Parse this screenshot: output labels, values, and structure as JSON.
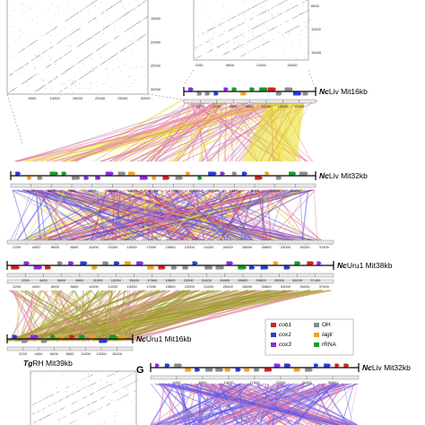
{
  "dotplot_left": {
    "y_ticks": [
      "15000",
      "20000",
      "25000",
      "30000"
    ],
    "x_ticks": [
      "5000",
      "10000",
      "15000",
      "20000",
      "25000",
      "30000"
    ]
  },
  "dotplot_right": {
    "y_ticks": [
      "6600",
      "11000",
      "15400"
    ],
    "x_ticks": [
      "2200",
      "6600",
      "11000",
      "15400"
    ]
  },
  "tracks": [
    {
      "id": "mit16",
      "label_prefix": "Nc",
      "label_rest": "Liv Mit16kb",
      "ticks": [
        "2200",
        "4400",
        "6600",
        "8800",
        "11000",
        "13200",
        "15400"
      ]
    },
    {
      "id": "mit32",
      "label_prefix": "Nc",
      "label_rest": "Liv Mit32kb",
      "ticks": [
        "2200",
        "4400",
        "6600",
        "8800",
        "11000",
        "13200",
        "15400",
        "17600",
        "19800",
        "22000",
        "24200",
        "26400",
        "28600",
        "30800"
      ]
    },
    {
      "id": "mit38",
      "label_prefix": "Nc",
      "label_rest": "Uru1 Mit38kb",
      "ticks": [
        "2200",
        "4400",
        "6600",
        "8800",
        "11000",
        "13200",
        "15400",
        "17600",
        "19800",
        "22000",
        "24200",
        "26400",
        "28600",
        "30800",
        "33000",
        "35200",
        "37400"
      ]
    },
    {
      "id": "uru16",
      "label_prefix": "Nc",
      "label_rest": "Uru1 Mit16kb",
      "ticks": [
        "2200",
        "4400",
        "6600",
        "8800",
        "11000",
        "13200",
        "15400"
      ]
    },
    {
      "id": "g32",
      "label_prefix": "Nc",
      "label_rest": "Liv Mit32kb",
      "ticks": [
        "4400",
        "8800",
        "13200",
        "17600",
        "22000",
        "26400",
        "30800"
      ]
    }
  ],
  "mid_axis_ticks": [
    "2200",
    "4400",
    "6600",
    "8800",
    "11000",
    "13200",
    "15400",
    "17600",
    "19800",
    "22000",
    "24200",
    "26400",
    "28600",
    "30800",
    "33000",
    "35200",
    "37400"
  ],
  "mid_axis_ticks_lower": [
    "2200",
    "4400",
    "6600",
    "8800",
    "11000",
    "13200",
    "15400",
    "17600",
    "19800",
    "22000",
    "24200",
    "26400",
    "28600",
    "30800",
    "33000",
    "35200",
    "37400"
  ],
  "tg_label": {
    "prefix": "Tg",
    "rest": "RH Mit39kb"
  },
  "panel_letter": "G",
  "legend": [
    {
      "label": "cob1",
      "color": "#d62020",
      "italic": true
    },
    {
      "label": "OH",
      "color": "#8a8a8a",
      "italic": false
    },
    {
      "label": "cox1",
      "color": "#2b3bd6",
      "italic": true
    },
    {
      "label": "lagli",
      "color": "#f0a020",
      "italic": true
    },
    {
      "label": "cox3",
      "color": "#8a2be2",
      "italic": true
    },
    {
      "label": "rRNA",
      "color": "#1a9a2a",
      "italic": false
    }
  ],
  "colors": {
    "forward_link": "#e87aa0",
    "reverse_link": "#5a5ae0",
    "collinear_link": "#e8e020",
    "olive_link": "#9a9a30"
  }
}
